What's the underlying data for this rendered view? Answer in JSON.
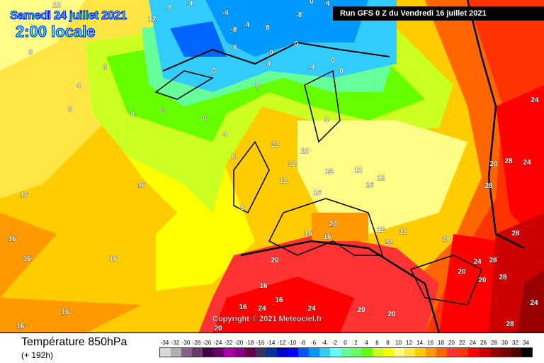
{
  "header": {
    "valid_date": "Samedi 24 juillet 2021",
    "valid_time": "2:00 locale",
    "run_info": "Run GFS 0 Z du Vendredi 16 juillet 2021"
  },
  "copyright": "Copyright © 2021 Meteociel.fr",
  "footer": {
    "title": "Température 850hPa",
    "subtitle": "(+ 192h)"
  },
  "legend": {
    "values": [
      "-34",
      "-32",
      "-30",
      "-28",
      "-26",
      "-24",
      "-22",
      "-20",
      "-18",
      "-16",
      "-14",
      "-12",
      "-10",
      "-8",
      "-6",
      "-4",
      "-2",
      "0",
      "2",
      "4",
      "6",
      "8",
      "10",
      "12",
      "14",
      "16",
      "18",
      "20",
      "22",
      "24",
      "26",
      "28",
      "30",
      "32",
      "34"
    ],
    "colors": [
      "#d9d9d9",
      "#b0b0b0",
      "#8b5f8b",
      "#643c64",
      "#440044",
      "#660066",
      "#aa00aa",
      "#880088",
      "#660044",
      "#333366",
      "#003399",
      "#0000cc",
      "#0000ff",
      "#0055ff",
      "#0099ff",
      "#33ccff",
      "#66ffff",
      "#66ff99",
      "#66ff66",
      "#66ff00",
      "#ccff22",
      "#ffff00",
      "#ffff88",
      "#ffe644",
      "#ffcc00",
      "#ff9900",
      "#ff6600",
      "#ff3333",
      "#ff3300",
      "#ff0000",
      "#cc0000",
      "#990000",
      "#770000",
      "#550000",
      "#000000"
    ]
  },
  "map_labels": [
    "12",
    "8",
    "12",
    "-4",
    "-4",
    "-8",
    "-4",
    "8",
    "0",
    "-4",
    "-8",
    "-8",
    "0",
    "0",
    "-4",
    "0",
    "0",
    "-4",
    "0",
    "8",
    "4",
    "4",
    "0",
    "0",
    "8",
    "4",
    "8",
    "8",
    "4",
    "12",
    "12",
    "8",
    "12",
    "12",
    "12",
    "8",
    "16",
    "16",
    "16",
    "12",
    "12",
    "16",
    "20",
    "16",
    "16",
    "12",
    "12",
    "12",
    "20",
    "16",
    "16",
    "16",
    "16",
    "16",
    "16",
    "20",
    "24",
    "24",
    "28",
    "28",
    "28",
    "20",
    "20",
    "20",
    "20",
    "24",
    "20",
    "28",
    "24",
    "28",
    "16",
    "16",
    "24",
    "28",
    "20",
    "24"
  ]
}
